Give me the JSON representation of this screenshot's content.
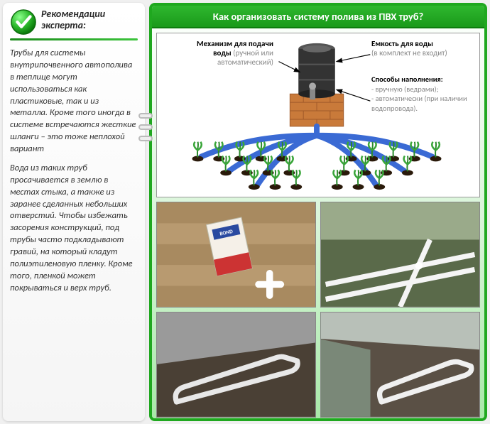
{
  "left": {
    "header": "Рекомендации эксперта:",
    "paragraph1": "Трубы для системы внутрипочвенного автополива в теплице могут использоваться как пластиковые, так и из металла. Кроме того иногда в системе встречаются жесткие шланги – это тоже неплохой вариант",
    "paragraph2": "Вода из таких труб просачивается в землю в местах стыка, а также из заранее сделанных небольших отверстий. Чтобы избежать засорения конструкций, под трубы часто подкладывают гравий, на который кладут полиэтиленовую пленку. Кроме того, пленкой может покрываться и верх труб."
  },
  "right": {
    "title": "Как организовать систему полива из ПВХ труб?",
    "diagram": {
      "mechanism_title": "Механизм для подачи воды",
      "mechanism_sub": "(ручной или автоматический)",
      "tank_title": "Емкость для воды",
      "tank_sub": "(в комплект не входит)",
      "fill_title": "Способы наполнения:",
      "fill_item1": "- вручную (ведрами);",
      "fill_item2": "- автоматически (при наличии водопровода).",
      "colors": {
        "barrel_top": "#555555",
        "barrel_body": "#333333",
        "brick": "#c97a3a",
        "brick_line": "#a05a2a",
        "pipe": "#3a6ad4",
        "plant_stem": "#2a8a2a",
        "plant_leaf": "#3aa63a",
        "plant_pot": "#3a2a1a"
      }
    },
    "photos": {
      "p1": {
        "bg": "#bfa27a",
        "desc": "cigarette-pack-on-wood-with-pvc-fitting"
      },
      "p2": {
        "bg": "#8a9a7a",
        "desc": "greenhouse-pvc-pipes-top"
      },
      "p3": {
        "bg": "#6a6055",
        "desc": "greenhouse-pvc-loop-soil-1"
      },
      "p4": {
        "bg": "#7a7060",
        "desc": "greenhouse-pvc-loop-soil-2"
      }
    }
  }
}
